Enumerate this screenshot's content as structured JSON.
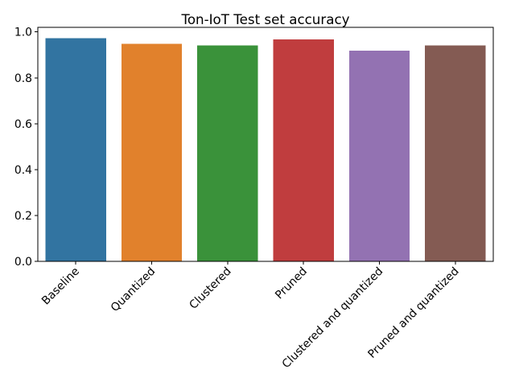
{
  "chart_data": {
    "type": "bar",
    "title": "Ton-IoT Test set accuracy",
    "xlabel": "",
    "ylabel": "",
    "categories": [
      "Baseline",
      "Quantized",
      "Clustered",
      "Pruned",
      "Clustered and quantized",
      "Pruned and quantized"
    ],
    "values": [
      0.972,
      0.948,
      0.941,
      0.968,
      0.919,
      0.941
    ],
    "colors": [
      "#3274a1",
      "#e1812c",
      "#3a923a",
      "#c03d3e",
      "#9372b2",
      "#845b53"
    ],
    "ylim": [
      0,
      1.02
    ],
    "yticks": [
      0.0,
      0.2,
      0.4,
      0.6,
      0.8,
      1.0
    ],
    "ytick_labels": [
      "0.0",
      "0.2",
      "0.4",
      "0.6",
      "0.8",
      "1.0"
    ],
    "xtick_rotation_deg": 45,
    "grid": false,
    "legend": "none"
  }
}
